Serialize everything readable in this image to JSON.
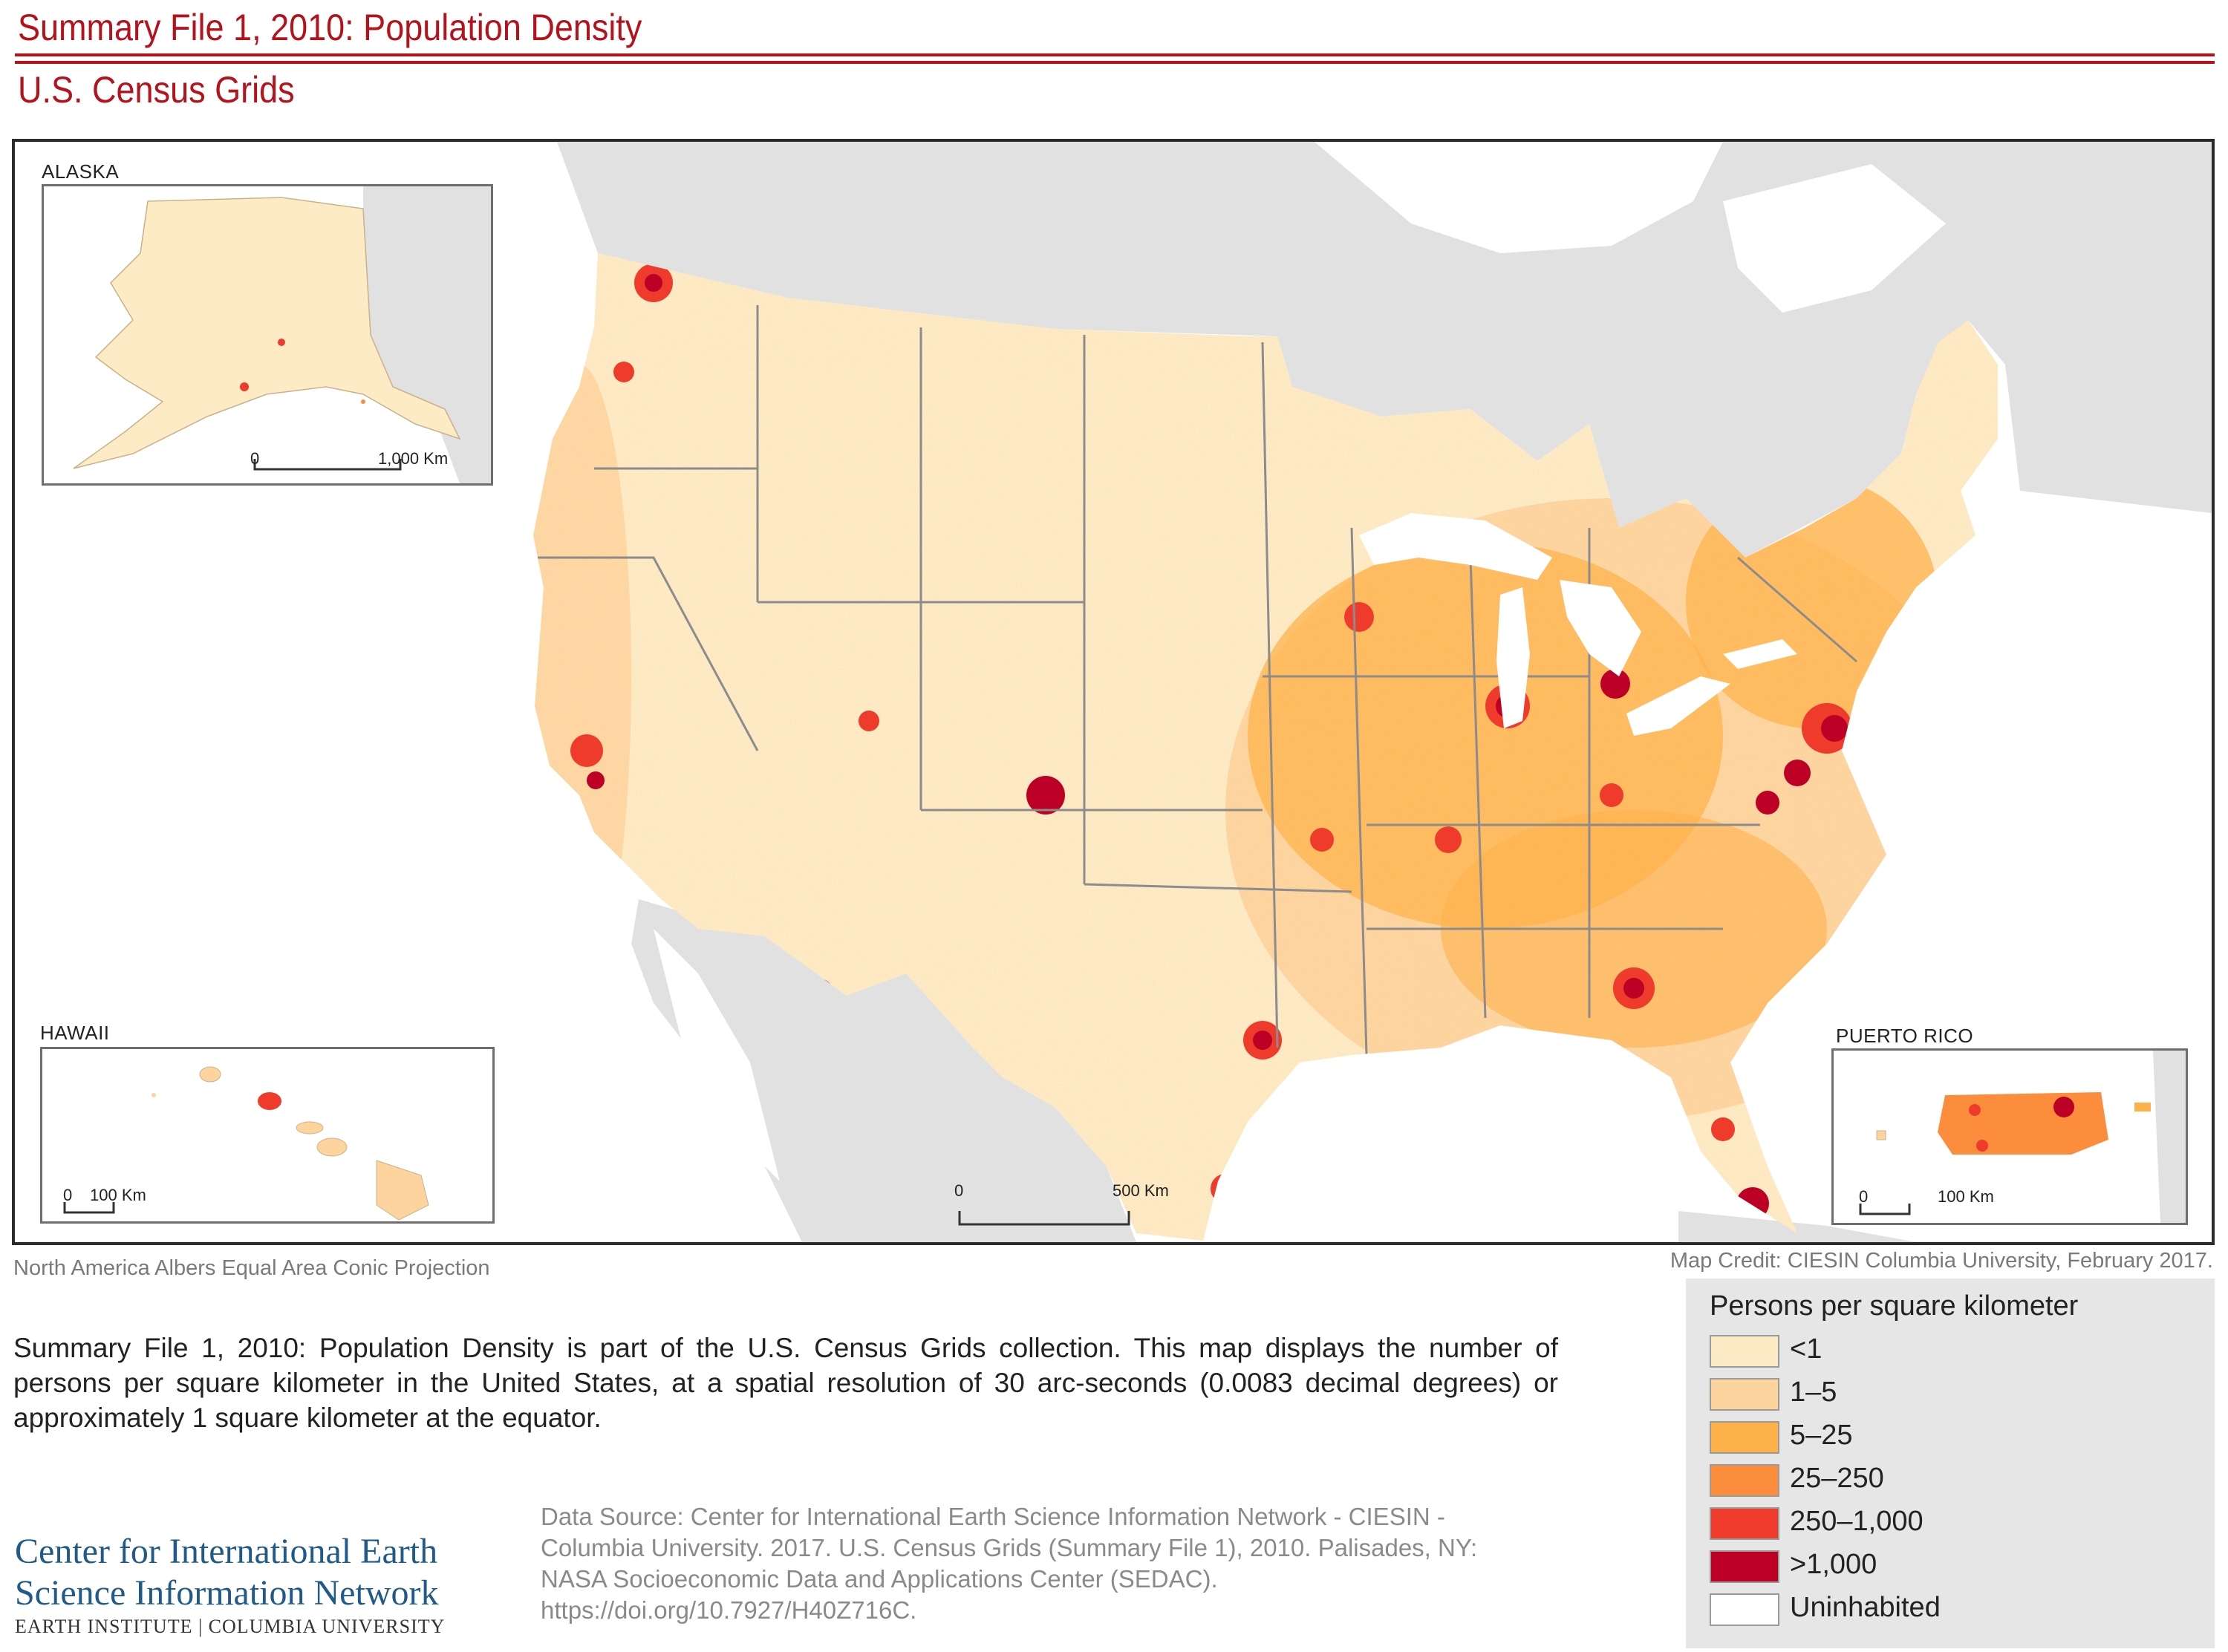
{
  "header": {
    "title": "Summary File 1, 2010: Population Density",
    "subtitle": "U.S. Census Grids"
  },
  "map": {
    "insets": {
      "alaska": {
        "label": "ALASKA",
        "scale_start": "0",
        "scale_end": "1,000 Km"
      },
      "hawaii": {
        "label": "HAWAII",
        "scale_start": "0",
        "scale_end": "100 Km"
      },
      "puerto_rico": {
        "label": "PUERTO RICO",
        "scale_start": "0",
        "scale_end": "100 Km"
      }
    },
    "scale_start": "0",
    "scale_end": "500 Km",
    "projection": "North America Albers Equal Area Conic Projection",
    "credit": "Map Credit: CIESIN Columbia University, February 2017.",
    "colors": {
      "land_context": "#e1e1e1",
      "water": "#ffffff",
      "state_border": "#8c8c8c"
    }
  },
  "description": "Summary File 1, 2010: Population Density is part of the U.S. Census Grids collection. This map displays the number of persons per square kilometer in the United States, at a spatial resolution of 30 arc-seconds (0.0083 decimal degrees) or approximately 1 square kilometer at the equator.",
  "source": {
    "line1": "Data Source: Center for International Earth Science Information Network - CIESIN -",
    "line2": "Columbia University. 2017. U.S. Census Grids (Summary File 1), 2010. Palisades, NY:",
    "line3": "NASA Socioeconomic Data and Applications Center (SEDAC).",
    "line4": "https://doi.org/10.7927/H40Z716C."
  },
  "legend": {
    "title": "Persons per square kilometer",
    "items": [
      {
        "label": "<1",
        "color": "#fdebc6"
      },
      {
        "label": "1–5",
        "color": "#fdd49e"
      },
      {
        "label": "5–25",
        "color": "#fdb14a"
      },
      {
        "label": "25–250",
        "color": "#fc8d3c"
      },
      {
        "label": "250–1,000",
        "color": "#ef3b2c"
      },
      {
        "label": ">1,000",
        "color": "#bd0026"
      },
      {
        "label": "Uninhabited",
        "color": "#ffffff"
      }
    ]
  },
  "organization": {
    "line1": "Center for International Earth",
    "line2": "Science Information Network",
    "line3": "EARTH INSTITUTE | COLUMBIA UNIVERSITY"
  }
}
